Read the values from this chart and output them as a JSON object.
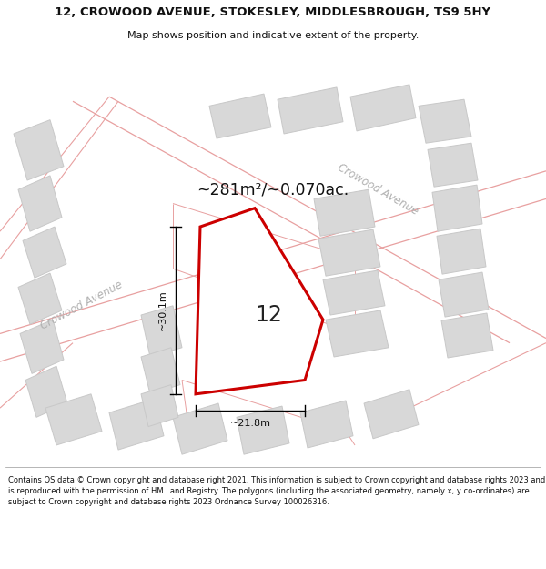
{
  "title": "12, CROWOOD AVENUE, STOKESLEY, MIDDLESBROUGH, TS9 5HY",
  "subtitle": "Map shows position and indicative extent of the property.",
  "footer": "Contains OS data © Crown copyright and database right 2021. This information is subject to Crown copyright and database rights 2023 and is reproduced with the permission of HM Land Registry. The polygons (including the associated geometry, namely x, y co-ordinates) are subject to Crown copyright and database rights 2023 Ordnance Survey 100026316.",
  "bg_color": "#ffffff",
  "map_bg": "#ffffff",
  "building_color": "#d8d8d8",
  "building_edge": "#c8c8c8",
  "road_line_color": "#e8a0a0",
  "plot_fill": "#ffffff",
  "plot_edge": "#cc0000",
  "label_12": "12",
  "area_text": "~281m²/~0.070ac.",
  "dim_width": "~21.8m",
  "dim_height": "~30.1m",
  "road_label": "Crowood Avenue",
  "road_label_color": "#b0b0b0",
  "title_fontsize": 9.5,
  "subtitle_fontsize": 8.0,
  "footer_fontsize": 6.0
}
